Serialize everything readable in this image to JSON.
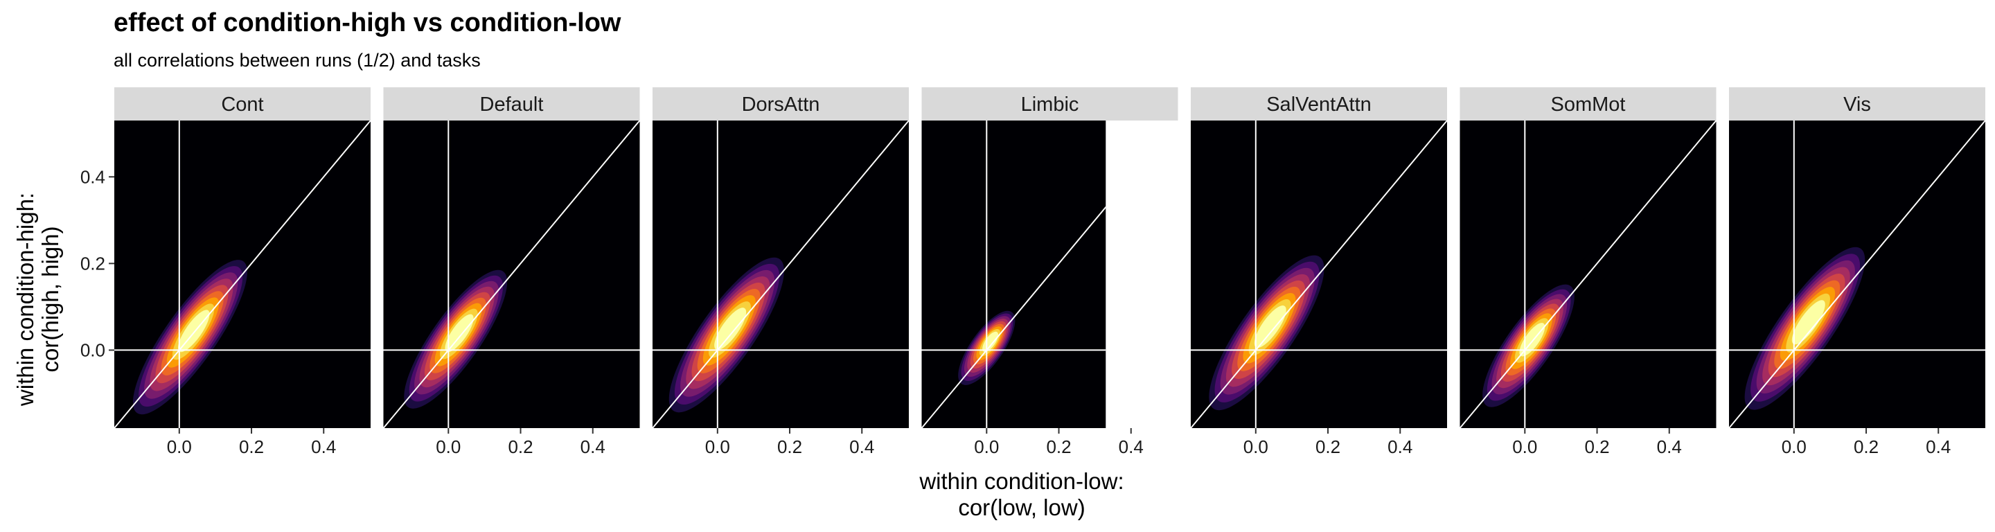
{
  "title": "effect of condition-high vs condition-low",
  "subtitle": "all correlations between runs (1/2) and tasks",
  "chart_data": {
    "type": "density2d-facets",
    "xlabel_line1": "within condition-low:",
    "xlabel_line2": "cor(low, low)",
    "ylabel_line1": "within condition-high:",
    "ylabel_line2": "cor(high, high)",
    "xlim": [
      -0.18,
      0.53
    ],
    "ylim": [
      -0.18,
      0.53
    ],
    "xticks": [
      0.0,
      0.2,
      0.4
    ],
    "xtick_labels": [
      "0.0",
      "0.2",
      "0.4"
    ],
    "yticks": [
      0.0,
      0.2,
      0.4
    ],
    "ytick_labels": [
      "0.0",
      "0.2",
      "0.4"
    ],
    "reference_lines": [
      "x = 0",
      "y = 0",
      "y = x"
    ],
    "palette": [
      "#1b0c41",
      "#4a0c6b",
      "#781c6d",
      "#a52c60",
      "#cf4446",
      "#ed6925",
      "#fb9b06",
      "#f7d13d",
      "#fcffa4"
    ],
    "background": "#000004",
    "facets": [
      {
        "name": "Cont",
        "cx": 0.03,
        "cy": 0.03,
        "spread": 0.095,
        "spread_y": 0.095,
        "xmax": 0.53
      },
      {
        "name": "Default",
        "cx": 0.02,
        "cy": 0.025,
        "spread": 0.085,
        "spread_y": 0.09,
        "xmax": 0.53
      },
      {
        "name": "DorsAttn",
        "cx": 0.025,
        "cy": 0.035,
        "spread": 0.095,
        "spread_y": 0.1,
        "xmax": 0.53
      },
      {
        "name": "Limbic",
        "cx": 0.0,
        "cy": 0.005,
        "spread": 0.045,
        "spread_y": 0.06,
        "xmax": 0.33
      },
      {
        "name": "SalVentAttn",
        "cx": 0.03,
        "cy": 0.04,
        "spread": 0.095,
        "spread_y": 0.1,
        "xmax": 0.53
      },
      {
        "name": "SomMot",
        "cx": 0.01,
        "cy": 0.01,
        "spread": 0.075,
        "spread_y": 0.085,
        "xmax": 0.53
      },
      {
        "name": "Vis",
        "cx": 0.03,
        "cy": 0.05,
        "spread": 0.1,
        "spread_y": 0.1,
        "xmax": 0.53
      }
    ]
  }
}
